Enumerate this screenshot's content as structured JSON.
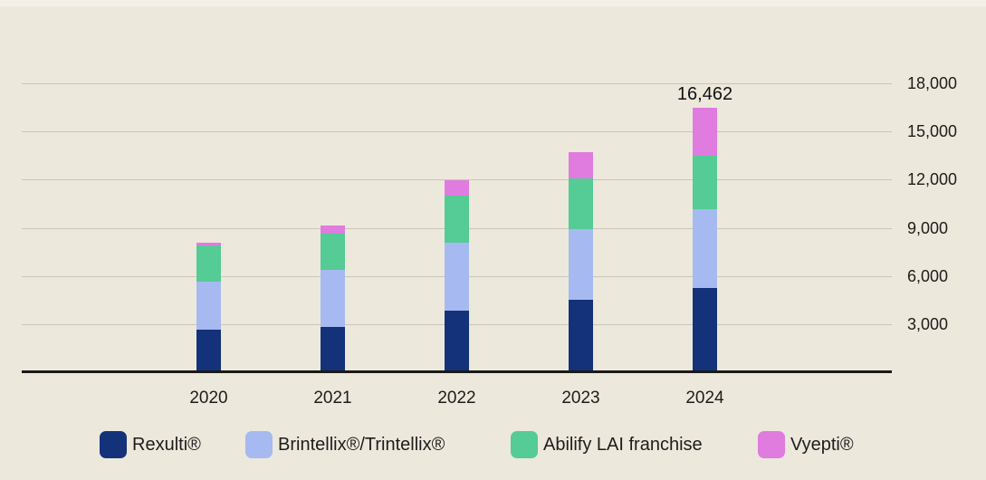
{
  "colors": {
    "background": "#ECE8DC",
    "top_strip": "#F3F0E9",
    "gridline": "#C9C5BB",
    "axis_line": "#1A1A18",
    "text": "#1D1D1B"
  },
  "chart_data": {
    "type": "bar",
    "stacked": true,
    "title": "",
    "xlabel": "",
    "ylabel": "",
    "grid": true,
    "legend_position": "bottom",
    "categories": [
      "2020",
      "2021",
      "2022",
      "2023",
      "2024"
    ],
    "series": [
      {
        "name": "Rexulti®",
        "color": "#13327A",
        "values": [
          2650,
          2800,
          3850,
          4500,
          5228
        ]
      },
      {
        "name": "Brintellix®/Trintellix®",
        "color": "#A6BAF1",
        "values": [
          3000,
          3600,
          4200,
          4400,
          4946
        ]
      },
      {
        "name": "Abilify LAI franchise",
        "color": "#55CB95",
        "values": [
          2250,
          2250,
          2950,
          3150,
          3325
        ]
      },
      {
        "name": "Vyepti®",
        "color": "#E07BDF",
        "values": [
          150,
          500,
          950,
          1650,
          2963
        ]
      }
    ],
    "data_label": {
      "category": "2024",
      "text": "16,462",
      "value": 16462
    },
    "y_axis": {
      "min": 0,
      "max": 18000,
      "tick_step": 3000,
      "side": "right",
      "ticks": [
        {
          "value": 18000,
          "label": "18,000"
        },
        {
          "value": 15000,
          "label": "15,000"
        },
        {
          "value": 12000,
          "label": "12,000"
        },
        {
          "value": 9000,
          "label": "9,000"
        },
        {
          "value": 6000,
          "label": "6,000"
        },
        {
          "value": 3000,
          "label": "3,000"
        }
      ]
    }
  }
}
